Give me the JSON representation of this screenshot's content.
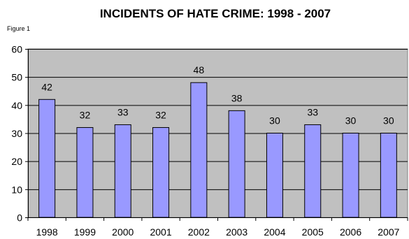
{
  "figure_label": "Figure 1",
  "colors": {
    "plot_background": "#c0c0c0",
    "bar_fill": "#9999ff",
    "bar_stroke": "#000000",
    "gridline": "#000000"
  },
  "chart_data": {
    "type": "bar",
    "title": "INCIDENTS OF HATE CRIME:  1998 - 2007",
    "xlabel": "",
    "ylabel": "",
    "categories": [
      "1998",
      "1999",
      "2000",
      "2001",
      "2002",
      "2003",
      "2004",
      "2005",
      "2006",
      "2007"
    ],
    "values": [
      42,
      32,
      33,
      32,
      48,
      38,
      30,
      33,
      30,
      30
    ],
    "ylim": [
      0,
      60
    ],
    "yticks": [
      "0",
      "10",
      "20",
      "30",
      "40",
      "50",
      "60"
    ],
    "grid": true,
    "legend": "none",
    "data_labels": true
  }
}
